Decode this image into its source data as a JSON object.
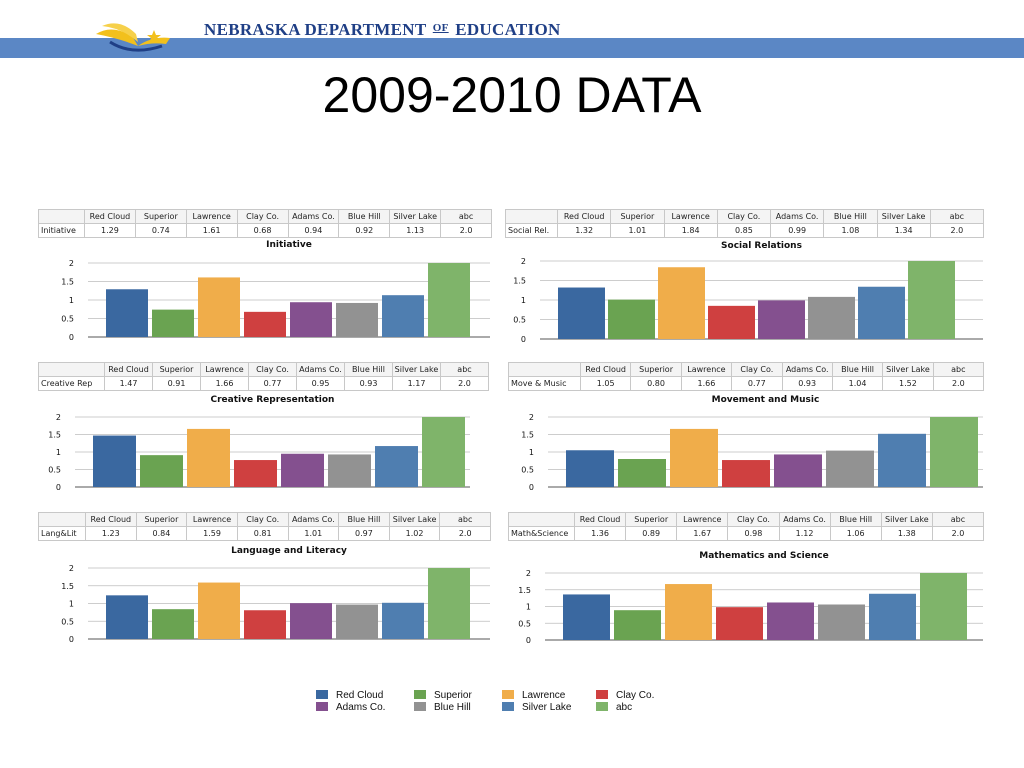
{
  "header": {
    "org_name_left": "NEBRASKA DEPARTMENT",
    "org_name_of": "OF",
    "org_name_right": "EDUCATION",
    "logo_icon": "open-book-star-icon"
  },
  "title": "2009-2010 DATA",
  "colors": {
    "Red Cloud": "#3a68a0",
    "Superior": "#6aa351",
    "Lawrence": "#f0ad4a",
    "Clay Co.": "#cf4040",
    "Adams Co.": "#84508f",
    "Blue Hill": "#929292",
    "Silver Lake": "#4f7eb0",
    "abc": "#7fb46a"
  },
  "legend": [
    "Red Cloud",
    "Superior",
    "Lawrence",
    "Clay Co.",
    "Adams Co.",
    "Blue Hill",
    "Silver Lake",
    "abc"
  ],
  "chart_data": [
    {
      "type": "bar",
      "title": "Initiative",
      "row_label": "Initiative",
      "categories": [
        "Red Cloud",
        "Superior",
        "Lawrence",
        "Clay Co.",
        "Adams Co.",
        "Blue Hill",
        "Silver Lake",
        "abc"
      ],
      "values": [
        1.29,
        0.74,
        1.61,
        0.68,
        0.94,
        0.92,
        1.13,
        2.0
      ],
      "value_labels": [
        "1.29",
        "0.74",
        "1.61",
        "0.68",
        "0.94",
        "0.92",
        "1.13",
        "2.0"
      ],
      "yticks": [
        "0",
        "0.5",
        "1",
        "1.5",
        "2"
      ],
      "ylim": [
        0,
        2
      ],
      "grid": true
    },
    {
      "type": "bar",
      "title": "Social Relations",
      "row_label": "Social Rel.",
      "categories": [
        "Red Cloud",
        "Superior",
        "Lawrence",
        "Clay Co.",
        "Adams Co.",
        "Blue Hill",
        "Silver Lake",
        "abc"
      ],
      "values": [
        1.32,
        1.01,
        1.84,
        0.85,
        0.99,
        1.08,
        1.34,
        2.0
      ],
      "value_labels": [
        "1.32",
        "1.01",
        "1.84",
        "0.85",
        "0.99",
        "1.08",
        "1.34",
        "2.0"
      ],
      "yticks": [
        "0",
        "0.5",
        "1",
        "1.5",
        "2"
      ],
      "ylim": [
        0,
        2
      ],
      "grid": true
    },
    {
      "type": "bar",
      "title": "Creative Representation",
      "row_label": "Creative Rep",
      "categories": [
        "Red Cloud",
        "Superior",
        "Lawrence",
        "Clay Co.",
        "Adams Co.",
        "Blue Hill",
        "Silver Lake",
        "abc"
      ],
      "values": [
        1.47,
        0.91,
        1.66,
        0.77,
        0.95,
        0.93,
        1.17,
        2.0
      ],
      "value_labels": [
        "1.47",
        "0.91",
        "1.66",
        "0.77",
        "0.95",
        "0.93",
        "1.17",
        "2.0"
      ],
      "yticks": [
        "0",
        "0.5",
        "1",
        "1.5",
        "2"
      ],
      "ylim": [
        0,
        2
      ],
      "grid": true
    },
    {
      "type": "bar",
      "title": "Movement and Music",
      "row_label": "Move & Music",
      "categories": [
        "Red Cloud",
        "Superior",
        "Lawrence",
        "Clay Co.",
        "Adams Co.",
        "Blue Hill",
        "Silver Lake",
        "abc"
      ],
      "values": [
        1.05,
        0.8,
        1.66,
        0.77,
        0.93,
        1.04,
        1.52,
        2.0
      ],
      "value_labels": [
        "1.05",
        "0.80",
        "1.66",
        "0.77",
        "0.93",
        "1.04",
        "1.52",
        "2.0"
      ],
      "yticks": [
        "0",
        "0.5",
        "1",
        "1.5",
        "2"
      ],
      "ylim": [
        0,
        2
      ],
      "grid": true
    },
    {
      "type": "bar",
      "title": "Language and Literacy",
      "row_label": "Lang&Lit",
      "categories": [
        "Red Cloud",
        "Superior",
        "Lawrence",
        "Clay Co.",
        "Adams Co.",
        "Blue Hill",
        "Silver Lake",
        "abc"
      ],
      "values": [
        1.23,
        0.84,
        1.59,
        0.81,
        1.01,
        0.97,
        1.02,
        2.0
      ],
      "value_labels": [
        "1.23",
        "0.84",
        "1.59",
        "0.81",
        "1.01",
        "0.97",
        "1.02",
        "2.0"
      ],
      "yticks": [
        "0",
        "0.5",
        "1",
        "1.5",
        "2"
      ],
      "ylim": [
        0,
        2
      ],
      "grid": true
    },
    {
      "type": "bar",
      "title": "Mathematics and Science",
      "row_label": "Math&Science",
      "categories": [
        "Red Cloud",
        "Superior",
        "Lawrence",
        "Clay Co.",
        "Adams Co.",
        "Blue Hill",
        "Silver Lake",
        "abc"
      ],
      "values": [
        1.36,
        0.89,
        1.67,
        0.98,
        1.12,
        1.06,
        1.38,
        2.0
      ],
      "value_labels": [
        "1.36",
        "0.89",
        "1.67",
        "0.98",
        "1.12",
        "1.06",
        "1.38",
        "2.0"
      ],
      "yticks": [
        "0",
        "0.5",
        "1",
        "1.5",
        "2"
      ],
      "ylim": [
        0,
        2
      ],
      "grid": true
    }
  ]
}
